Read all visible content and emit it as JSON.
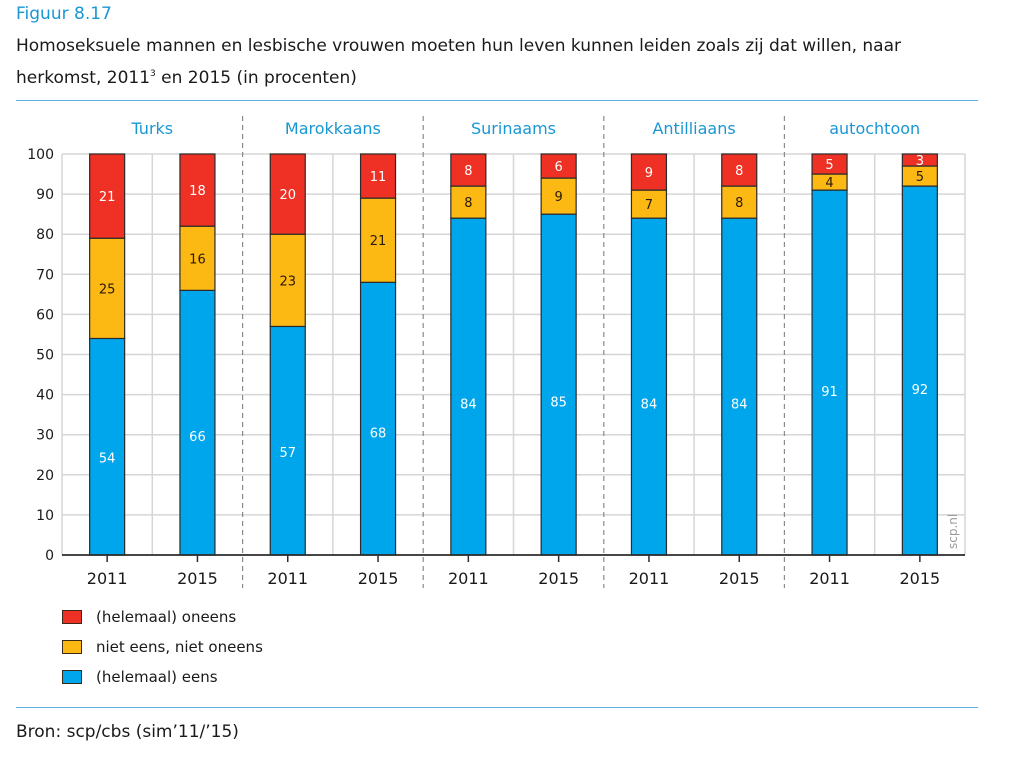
{
  "figure_label": "Figuur 8.17",
  "title_part1": "Homoseksuele mannen en lesbische vrouwen moeten hun leven kunnen leiden zoals zij dat willen, naar herkomst, 2011",
  "title_footnote": "3",
  "title_part2": " en 2015 (in procenten)",
  "source": "Bron: scp/cbs (sim’11/’15)",
  "watermark": "scp.nl",
  "colors": {
    "oneens": "#ee3124",
    "neutraal": "#fdb913",
    "eens": "#00a6eb",
    "group_label": "#1a96d4",
    "grid": "#d6d6d6",
    "bar_stroke": "#2b2b2b"
  },
  "chart_data": {
    "type": "bar",
    "stacked": true,
    "title": "Homoseksuele mannen en lesbische vrouwen moeten hun leven kunnen leiden zoals zij dat willen, naar herkomst, 2011 en 2015 (in procenten)",
    "xlabel": "",
    "ylabel": "",
    "ylim": [
      0,
      100
    ],
    "yticks": [
      0,
      10,
      20,
      30,
      40,
      50,
      60,
      70,
      80,
      90,
      100
    ],
    "grid": true,
    "legend_position": "bottom-left",
    "groups": [
      "Turks",
      "Marokkaans",
      "Surinaams",
      "Antilliaans",
      "autochtoon"
    ],
    "categories": [
      "2011",
      "2015",
      "2011",
      "2015",
      "2011",
      "2015",
      "2011",
      "2015",
      "2011",
      "2015"
    ],
    "series": [
      {
        "name": "(helemaal) eens",
        "key": "eens",
        "values": [
          54,
          66,
          57,
          68,
          84,
          85,
          84,
          84,
          91,
          92
        ]
      },
      {
        "name": "niet eens, niet oneens",
        "key": "neutraal",
        "values": [
          25,
          16,
          23,
          21,
          8,
          9,
          7,
          8,
          4,
          5
        ]
      },
      {
        "name": "(helemaal) oneens",
        "key": "oneens",
        "values": [
          21,
          18,
          20,
          11,
          8,
          6,
          9,
          8,
          5,
          3
        ]
      }
    ],
    "legend": [
      {
        "name": "(helemaal) oneens",
        "key": "oneens"
      },
      {
        "name": "niet eens, niet oneens",
        "key": "neutraal"
      },
      {
        "name": "(helemaal) eens",
        "key": "eens"
      }
    ]
  }
}
